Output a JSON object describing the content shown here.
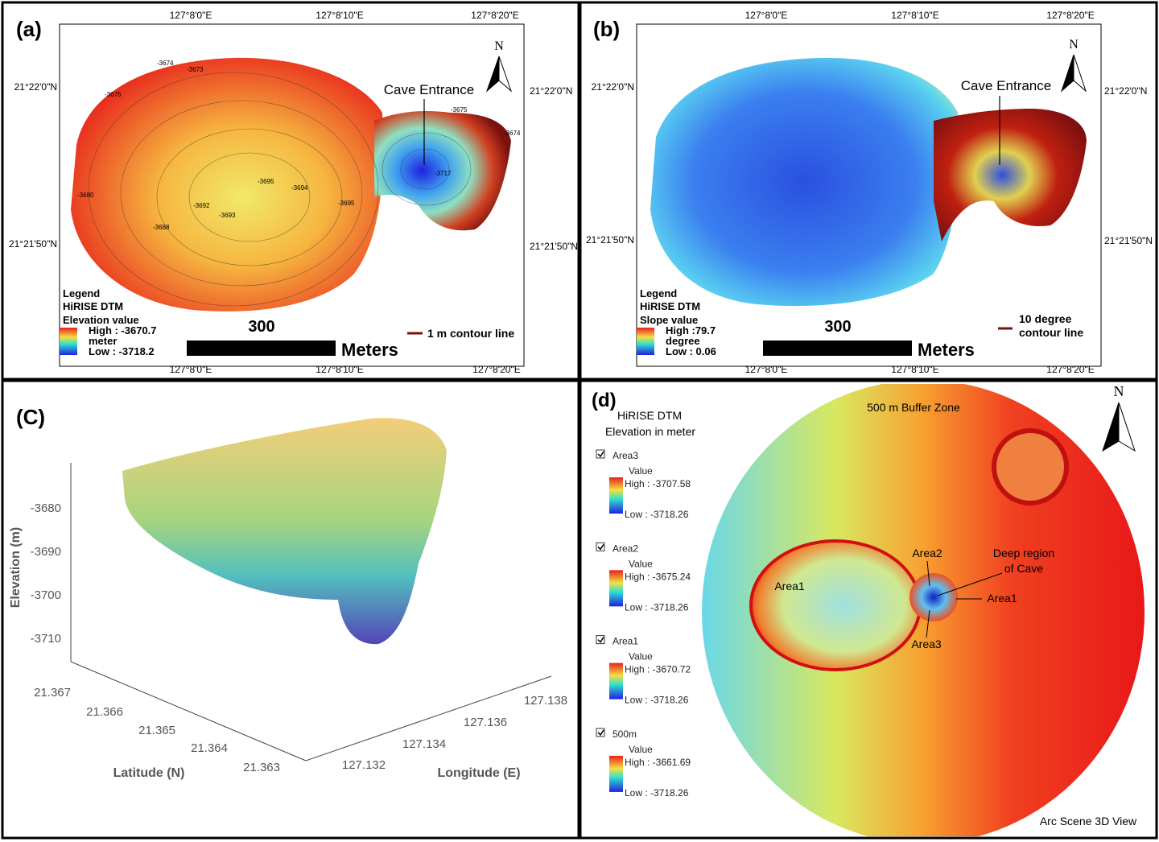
{
  "panel_a": {
    "label": "(a)",
    "lon": [
      "127°8'0\"E",
      "127°8'10\"E",
      "127°8'20\"E"
    ],
    "lat": [
      "21°22'0\"N",
      "21°21'50\"N"
    ],
    "cave": "Cave Entrance",
    "north": "N",
    "contours": [
      "-3674",
      "-3673",
      "-3676",
      "-3675",
      "-3674",
      "-3695",
      "-3694",
      "-3692",
      "-3693",
      "-3695",
      "-3688",
      "-3680",
      "-3717"
    ],
    "legend": {
      "title": "Legend",
      "layer": "HiRISE DTM",
      "field": "Elevation value",
      "high": "High : -3670.7",
      "unit": "meter",
      "low": "Low : -3718.2"
    },
    "scale": {
      "value": "300",
      "unit": "Meters"
    },
    "contour_legend": "1 m contour line"
  },
  "panel_b": {
    "label": "(b)",
    "lon": [
      "127°8'0\"E",
      "127°8'10\"E",
      "127°8'20\"E"
    ],
    "lat": [
      "21°22'0\"N",
      "21°21'50\"N"
    ],
    "cave": "Cave Entrance",
    "north": "N",
    "legend": {
      "title": "Legend",
      "layer": "HiRISE DTM",
      "field": "Slope value",
      "high": "High :79.7",
      "unit": "degree",
      "low": "Low : 0.06"
    },
    "scale": {
      "value": "300",
      "unit": "Meters"
    },
    "contour_legend": [
      "10 degree",
      "contour line"
    ]
  },
  "panel_c": {
    "label": "(C)",
    "z_ticks": [
      "-3680",
      "-3690",
      "-3700",
      "-3710"
    ],
    "z_label": "Elevation (m)",
    "lat_ticks": [
      "21.367",
      "21.366",
      "21.365",
      "21.364",
      "21.363"
    ],
    "lat_label": "Latitude (N)",
    "lon_ticks": [
      "127.132",
      "127.134",
      "127.136",
      "127.138"
    ],
    "lon_label": "Longitude (E)"
  },
  "panel_d": {
    "label": "(d)",
    "north": "N",
    "legend_title": [
      "HiRISE DTM",
      "Elevation in meter"
    ],
    "layers": [
      {
        "name": "Area3",
        "field": "Value",
        "high": "High : -3707.58",
        "low": "Low : -3718.26"
      },
      {
        "name": "Area2",
        "field": "Value",
        "high": "High : -3675.24",
        "low": "Low : -3718.26"
      },
      {
        "name": "Area1",
        "field": "Value",
        "high": "High : -3670.72",
        "low": "Low : -3718.26"
      },
      {
        "name": "500m",
        "field": "Value",
        "high": "High : -3661.69",
        "low": "Low : -3718.26"
      }
    ],
    "buffer": "500 m Buffer Zone",
    "labels": [
      "Area1",
      "Area2",
      "Deep region",
      "of Cave",
      "Area1",
      "Area3"
    ],
    "view": "Arc Scene 3D View"
  }
}
